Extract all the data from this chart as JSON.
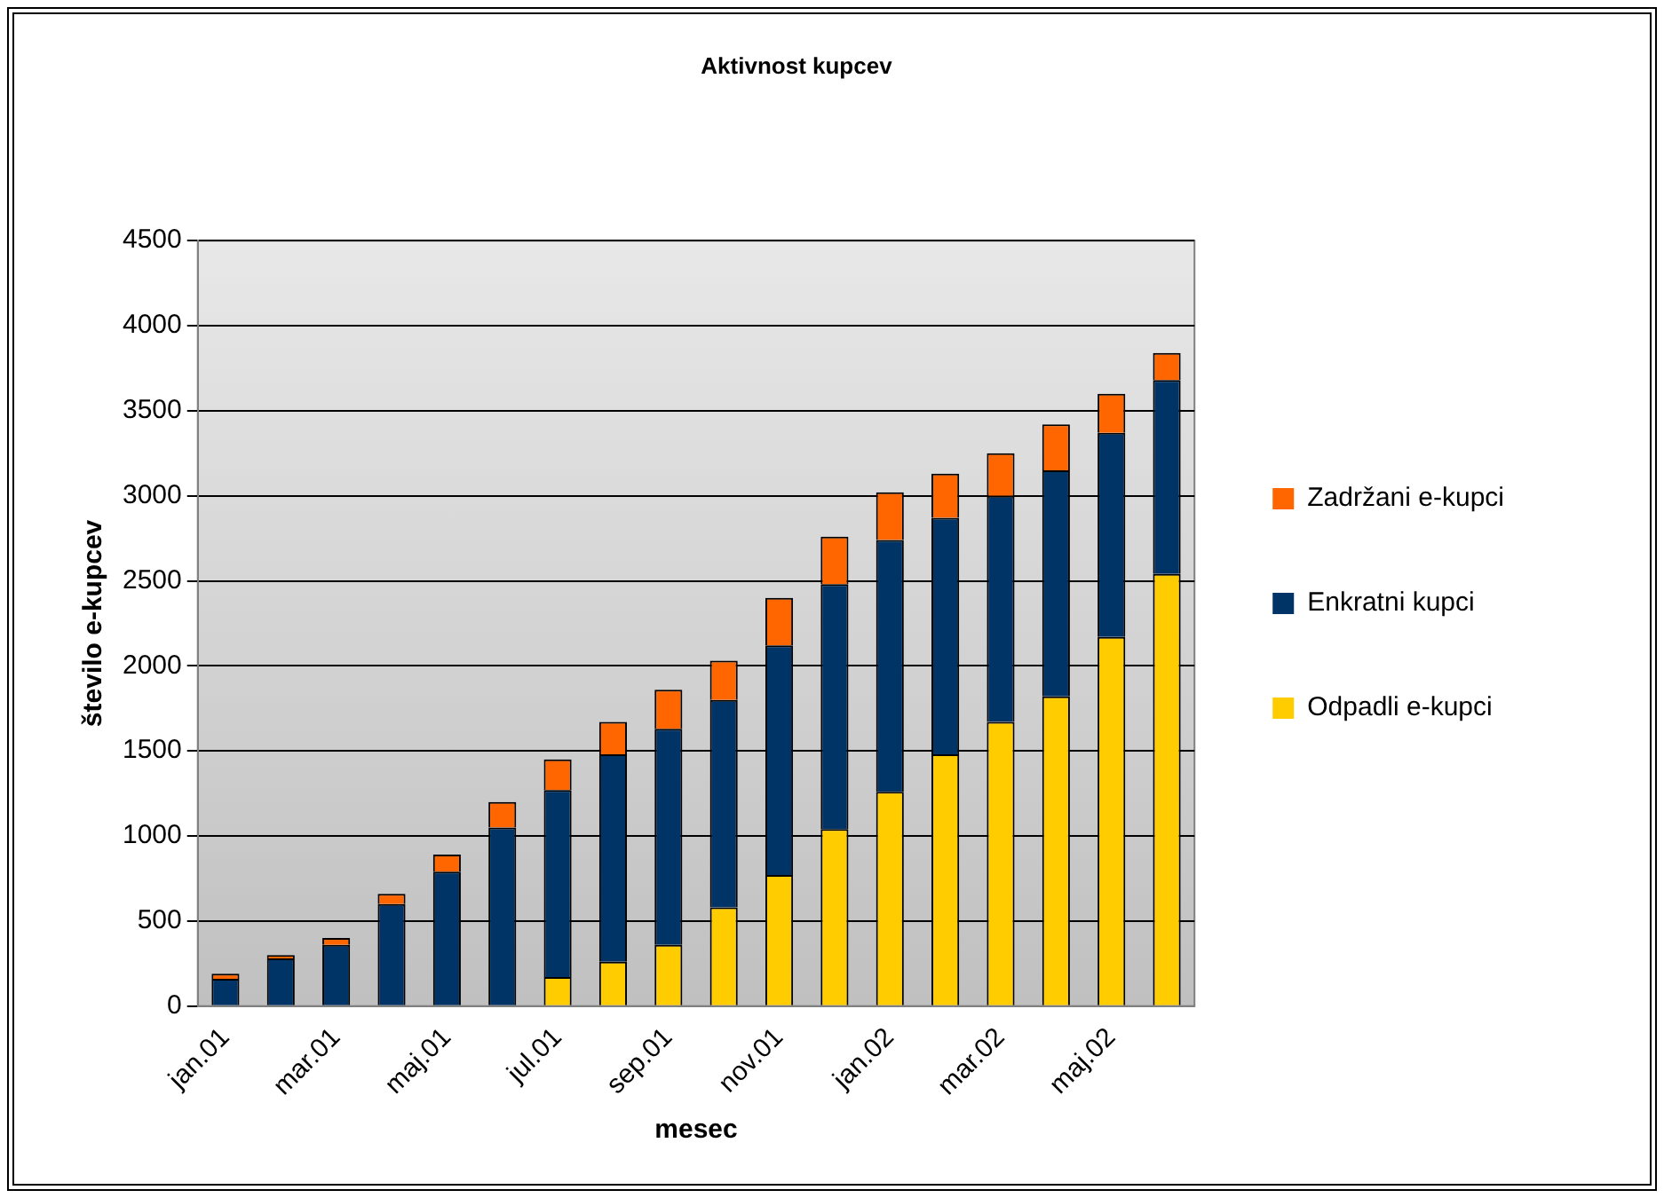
{
  "chart_data": {
    "type": "bar",
    "title": "Aktivnost kupcev",
    "xlabel": "mesec",
    "ylabel": "število e-kupcev",
    "categories": [
      "jan.01",
      null,
      "mar.01",
      null,
      "maj.01",
      null,
      "jul.01",
      null,
      "sep.01",
      null,
      "nov.01",
      null,
      "jan.02",
      null,
      "mar.02",
      null,
      "maj.02",
      null
    ],
    "stacked": true,
    "ylim": [
      0,
      4500
    ],
    "yticks": [
      0,
      500,
      1000,
      1500,
      2000,
      2500,
      3000,
      3500,
      4000,
      4500
    ],
    "grid": "y",
    "legend": "right",
    "series": [
      {
        "name": "Odpadli e-kupci",
        "color": "#ffcc00",
        "values": [
          0,
          0,
          0,
          0,
          0,
          0,
          170,
          260,
          360,
          580,
          770,
          1040,
          1260,
          1480,
          1670,
          1820,
          2170,
          2540
        ]
      },
      {
        "name": "Enkratni kupci",
        "color": "#003366",
        "values": [
          160,
          280,
          360,
          600,
          790,
          1050,
          1100,
          1220,
          1270,
          1220,
          1350,
          1440,
          1480,
          1390,
          1330,
          1330,
          1200,
          1140
        ]
      },
      {
        "name": "Zadržani e-kupci",
        "color": "#ff6600",
        "values": [
          30,
          20,
          40,
          60,
          100,
          150,
          180,
          190,
          230,
          230,
          280,
          280,
          280,
          260,
          250,
          270,
          230,
          160
        ]
      }
    ]
  }
}
